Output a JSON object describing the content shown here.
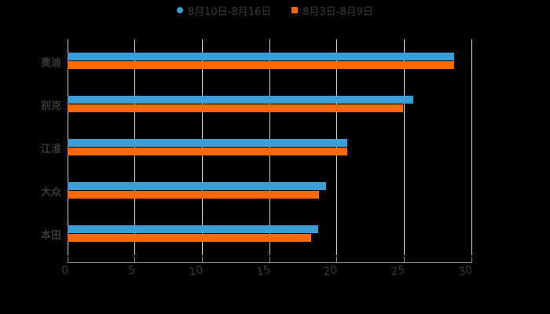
{
  "legend": {
    "series": [
      {
        "label": "8月10日-8月16日",
        "color": "#3a9fd6",
        "shape": "circle"
      },
      {
        "label": "8月3日-8月9日",
        "color": "#ff6a00",
        "shape": "square"
      }
    ]
  },
  "axis": {
    "x_ticks": [
      "0",
      "5",
      "10",
      "15",
      "20",
      "25",
      "30"
    ]
  },
  "categories": [
    "奥迪",
    "别克",
    "江淮",
    "大众",
    "本田"
  ],
  "chart_data": {
    "type": "bar",
    "orientation": "horizontal",
    "title": "",
    "categories": [
      "奥迪",
      "别克",
      "江淮",
      "大众",
      "本田"
    ],
    "series": [
      {
        "name": "8月10日-8月16日",
        "color": "#3a9fd6",
        "values": [
          28.7,
          25.7,
          20.8,
          19.2,
          18.6
        ]
      },
      {
        "name": "8月3日-8月9日",
        "color": "#ff6a00",
        "values": [
          28.7,
          24.9,
          20.8,
          18.7,
          18.1
        ]
      }
    ],
    "xlabel": "",
    "ylabel": "",
    "xlim": [
      0,
      30
    ],
    "x_ticks": [
      0,
      5,
      10,
      15,
      20,
      25,
      30
    ],
    "grid": "vertical",
    "legend_position": "top"
  }
}
